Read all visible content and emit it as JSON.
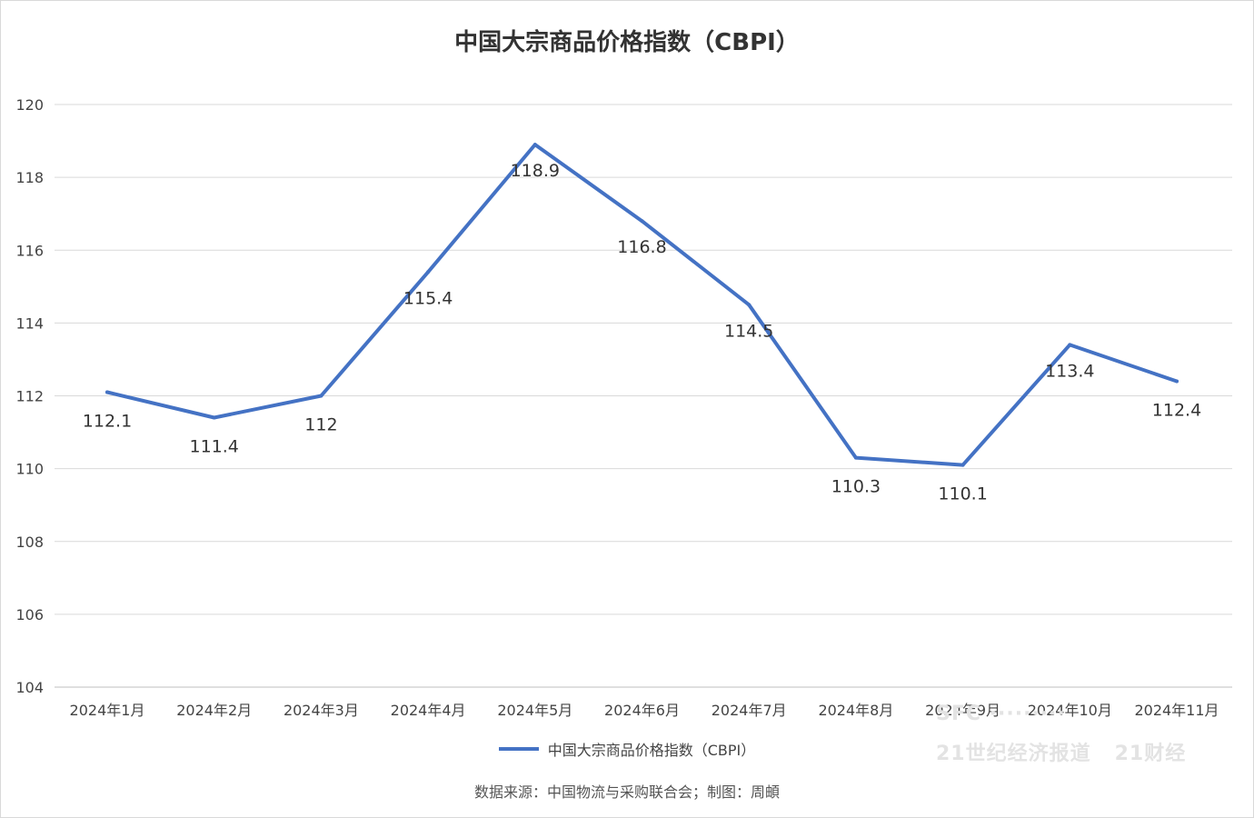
{
  "chart_data": {
    "type": "line",
    "title": "中国大宗商品价格指数（CBPI）",
    "categories": [
      "2024年1月",
      "2024年2月",
      "2024年3月",
      "2024年4月",
      "2024年5月",
      "2024年6月",
      "2024年7月",
      "2024年8月",
      "2024年9月",
      "2024年10月",
      "2024年11月"
    ],
    "series": [
      {
        "name": "中国大宗商品价格指数（CBPI）",
        "values": [
          112.1,
          111.4,
          112,
          115.4,
          118.9,
          116.8,
          114.5,
          110.3,
          110.1,
          113.4,
          112.4
        ],
        "labels": [
          "112.1",
          "111.4",
          "112",
          "115.4",
          "118.9",
          "116.8",
          "114.5",
          "110.3",
          "110.1",
          "113.4",
          "112.4"
        ]
      }
    ],
    "ylim": [
      104,
      120
    ],
    "yticks": [
      104,
      106,
      108,
      110,
      112,
      114,
      116,
      118,
      120
    ],
    "grid": true,
    "legend_position": "bottom",
    "line_color": "#4472c4"
  },
  "source_note": "数据来源：中国物流与采购联合会；制图：周頔"
}
